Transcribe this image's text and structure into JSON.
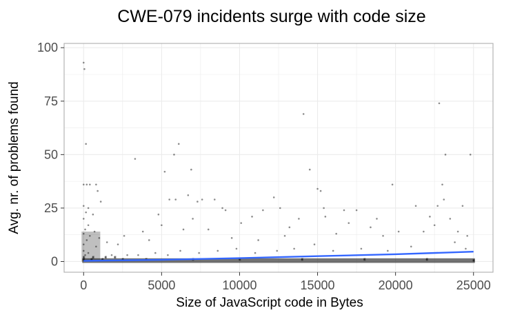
{
  "chart_data": {
    "type": "scatter",
    "title": "CWE-079 incidents surge with code size",
    "xlabel": "Size of JavaScript code in Bytes",
    "ylabel": "Avg. nr. of problems found",
    "xlim": [
      -1250,
      26250
    ],
    "ylim": [
      -5,
      102
    ],
    "x_ticks": [
      0,
      5000,
      10000,
      15000,
      20000,
      25000
    ],
    "y_ticks": [
      0,
      25,
      50,
      75,
      100
    ],
    "grid": true,
    "legend": "none",
    "colors": {
      "points": "#000000",
      "trend": "#3366ff",
      "grid": "#ebebeb",
      "panel_border": "#b3b3b3"
    },
    "series": [
      {
        "kind": "points",
        "points": [
          [
            0,
            93
          ],
          [
            50,
            90
          ],
          [
            150,
            55
          ],
          [
            0,
            36
          ],
          [
            200,
            36
          ],
          [
            400,
            36
          ],
          [
            800,
            36
          ],
          [
            900,
            33
          ],
          [
            1100,
            28
          ],
          [
            0,
            26
          ],
          [
            300,
            25
          ],
          [
            150,
            23
          ],
          [
            600,
            22
          ],
          [
            0,
            20
          ],
          [
            300,
            17
          ],
          [
            100,
            15
          ],
          [
            700,
            14
          ],
          [
            0,
            13
          ],
          [
            400,
            12
          ],
          [
            1000,
            11
          ],
          [
            200,
            10
          ],
          [
            1500,
            9
          ],
          [
            0,
            8
          ],
          [
            800,
            7
          ],
          [
            2200,
            8
          ],
          [
            2600,
            12
          ],
          [
            3300,
            48
          ],
          [
            4800,
            22
          ],
          [
            5200,
            42
          ],
          [
            5500,
            29
          ],
          [
            5800,
            50
          ],
          [
            5900,
            29
          ],
          [
            6100,
            55
          ],
          [
            6700,
            31
          ],
          [
            6900,
            43
          ],
          [
            7300,
            28
          ],
          [
            7600,
            29
          ],
          [
            3800,
            14
          ],
          [
            4200,
            10
          ],
          [
            5000,
            17
          ],
          [
            6400,
            15
          ],
          [
            7000,
            20
          ],
          [
            8400,
            29
          ],
          [
            8900,
            25
          ],
          [
            9100,
            24
          ],
          [
            8000,
            15
          ],
          [
            9500,
            11
          ],
          [
            10100,
            18
          ],
          [
            10800,
            21
          ],
          [
            11500,
            24
          ],
          [
            12200,
            30
          ],
          [
            12600,
            25
          ],
          [
            13200,
            16
          ],
          [
            11200,
            10
          ],
          [
            12900,
            12
          ],
          [
            13800,
            20
          ],
          [
            14100,
            69
          ],
          [
            14500,
            43
          ],
          [
            15000,
            34
          ],
          [
            15200,
            33
          ],
          [
            15400,
            25
          ],
          [
            15500,
            21
          ],
          [
            16200,
            13
          ],
          [
            16700,
            24
          ],
          [
            17000,
            18
          ],
          [
            17500,
            24
          ],
          [
            18400,
            16
          ],
          [
            18800,
            20
          ],
          [
            19200,
            12
          ],
          [
            19800,
            36
          ],
          [
            20200,
            14
          ],
          [
            21300,
            26
          ],
          [
            21800,
            14
          ],
          [
            22200,
            21
          ],
          [
            22500,
            17
          ],
          [
            22700,
            26
          ],
          [
            22800,
            74
          ],
          [
            23000,
            36
          ],
          [
            23200,
            50
          ],
          [
            23100,
            29
          ],
          [
            23500,
            20
          ],
          [
            24000,
            14
          ],
          [
            24300,
            26
          ],
          [
            24600,
            12
          ],
          [
            24800,
            50
          ],
          [
            24500,
            6
          ],
          [
            23800,
            9
          ],
          [
            21000,
            7
          ],
          [
            19500,
            5
          ],
          [
            17800,
            6
          ],
          [
            16000,
            5
          ],
          [
            14800,
            8
          ],
          [
            13500,
            6
          ],
          [
            12400,
            5
          ],
          [
            11000,
            4
          ],
          [
            9800,
            6
          ],
          [
            8600,
            5
          ],
          [
            7400,
            4
          ],
          [
            6200,
            5
          ],
          [
            5400,
            3
          ],
          [
            4600,
            4
          ],
          [
            3500,
            3
          ],
          [
            2800,
            3
          ],
          [
            2000,
            2
          ],
          [
            1400,
            2
          ],
          [
            1800,
            3
          ],
          [
            600,
            2
          ],
          [
            300,
            4
          ],
          [
            100,
            3
          ],
          [
            0,
            2
          ],
          [
            0,
            5
          ],
          [
            0,
            1
          ],
          [
            500,
            1
          ],
          [
            1200,
            1
          ],
          [
            2500,
            1
          ],
          [
            4000,
            1
          ],
          [
            7000,
            1
          ],
          [
            10000,
            1
          ],
          [
            14000,
            1
          ],
          [
            18000,
            1
          ],
          [
            22000,
            1
          ],
          [
            25000,
            0.5
          ]
        ]
      },
      {
        "kind": "trend-line",
        "points": [
          [
            0,
            0.3
          ],
          [
            5000,
            0.8
          ],
          [
            10000,
            1.6
          ],
          [
            15000,
            2.5
          ],
          [
            20000,
            3.4
          ],
          [
            25000,
            4.6
          ]
        ]
      }
    ]
  }
}
